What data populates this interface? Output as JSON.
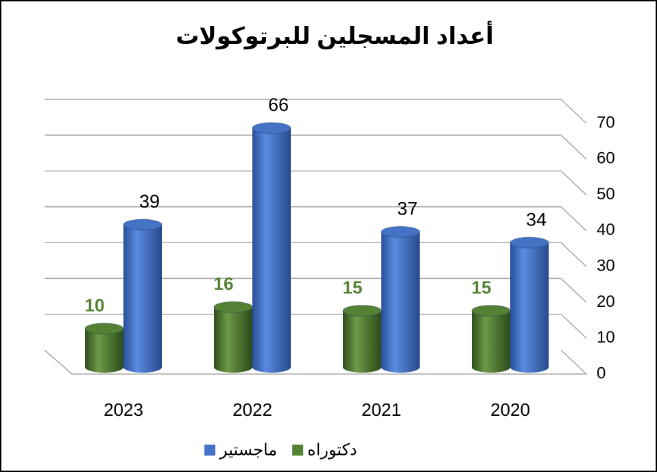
{
  "chart_data": {
    "type": "bar3d",
    "title": "أعداد المسجلين للبرتوكولات",
    "categories": [
      "2020",
      "2021",
      "2022",
      "2023"
    ],
    "x_reversed": true,
    "series": [
      {
        "name": "ماجستير",
        "color": "#4472c4",
        "label_color": "#000000",
        "values": [
          34,
          37,
          66,
          39
        ]
      },
      {
        "name": "دكتوراه",
        "color": "#548235",
        "label_color": "#548235",
        "values": [
          15,
          15,
          16,
          10
        ]
      }
    ],
    "ylim": [
      0,
      70
    ],
    "yticks": [
      0,
      10,
      20,
      30,
      40,
      50,
      60,
      70
    ],
    "grid": true,
    "yaxis_side": "right",
    "legend": "bottom"
  }
}
